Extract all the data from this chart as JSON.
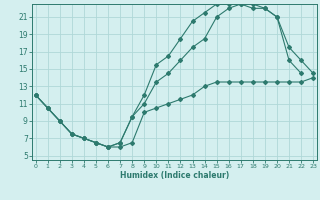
{
  "title": "",
  "xlabel": "Humidex (Indice chaleur)",
  "bg_color": "#d4efef",
  "line_color": "#2d7a6e",
  "grid_color": "#afd8d8",
  "xticks": [
    0,
    1,
    2,
    3,
    4,
    5,
    6,
    7,
    8,
    9,
    10,
    11,
    12,
    13,
    14,
    15,
    16,
    17,
    18,
    19,
    20,
    21,
    22,
    23
  ],
  "yticks": [
    5,
    7,
    9,
    11,
    13,
    15,
    17,
    19,
    21
  ],
  "xlim": [
    -0.3,
    23.3
  ],
  "ylim": [
    4.5,
    22.5
  ],
  "line1_x": [
    0,
    1,
    2,
    3,
    4,
    5,
    6,
    7,
    8,
    9,
    10,
    11,
    12,
    13,
    14,
    15,
    16,
    17,
    18,
    19,
    20,
    21,
    22,
    23
  ],
  "line1_y": [
    12,
    10.5,
    9,
    7.5,
    7,
    6.5,
    6,
    6,
    6.5,
    10,
    10.5,
    11,
    11.5,
    12,
    13,
    13.5,
    13.5,
    13.5,
    13.5,
    13.5,
    13.5,
    13.5,
    13.5,
    14
  ],
  "line2_x": [
    0,
    1,
    2,
    3,
    4,
    5,
    6,
    7,
    8,
    9,
    10,
    11,
    12,
    13,
    14,
    15,
    16,
    17,
    18,
    19,
    20,
    21,
    22
  ],
  "line2_y": [
    12,
    10.5,
    9,
    7.5,
    7,
    6.5,
    6,
    6.5,
    9.5,
    12,
    15.5,
    16.5,
    18.5,
    20.5,
    21.5,
    22.5,
    22.5,
    22.5,
    22,
    22,
    21,
    16,
    14.5
  ],
  "line3_x": [
    0,
    1,
    2,
    3,
    4,
    5,
    6,
    7,
    8,
    9,
    10,
    11,
    12,
    13,
    14,
    15,
    16,
    17,
    18,
    19,
    20,
    21,
    22,
    23
  ],
  "line3_y": [
    12,
    10.5,
    9,
    7.5,
    7,
    6.5,
    6,
    6.5,
    9.5,
    11,
    13.5,
    14.5,
    16,
    17.5,
    18.5,
    21,
    22,
    22.5,
    22.5,
    22,
    21,
    17.5,
    16,
    14.5
  ]
}
